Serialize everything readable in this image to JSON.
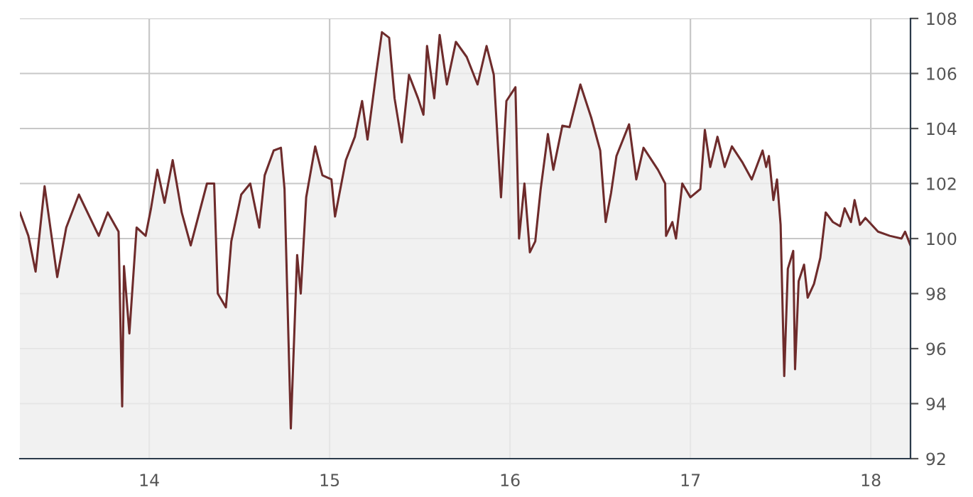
{
  "chart_data": {
    "type": "area",
    "xlim": [
      13.283,
      18.22
    ],
    "ylim": [
      92,
      108
    ],
    "xticks": [
      14,
      15,
      16,
      17,
      18
    ],
    "yticks": [
      92,
      94,
      96,
      98,
      100,
      102,
      104,
      106,
      108
    ],
    "grid": true,
    "legend": false,
    "marker": "none",
    "line_style": "solid",
    "series": [
      {
        "color": "#6e2b2b",
        "x": [
          13.283,
          13.33,
          13.37,
          13.42,
          13.49,
          13.54,
          13.61,
          13.72,
          13.77,
          13.83,
          13.85,
          13.86,
          13.89,
          13.93,
          13.98,
          14.01,
          14.045,
          14.085,
          14.13,
          14.18,
          14.23,
          14.32,
          14.36,
          14.38,
          14.425,
          14.455,
          14.51,
          14.56,
          14.61,
          14.64,
          14.69,
          14.73,
          14.75,
          14.785,
          14.82,
          14.84,
          14.87,
          14.92,
          14.96,
          15.01,
          15.03,
          15.09,
          15.14,
          15.18,
          15.21,
          15.26,
          15.29,
          15.33,
          15.36,
          15.4,
          15.44,
          15.49,
          15.52,
          15.54,
          15.58,
          15.61,
          15.65,
          15.7,
          15.76,
          15.82,
          15.87,
          15.91,
          15.95,
          15.98,
          16.03,
          16.05,
          16.08,
          16.11,
          16.14,
          16.17,
          16.21,
          16.24,
          16.29,
          16.33,
          16.39,
          16.45,
          16.5,
          16.53,
          16.56,
          16.59,
          16.66,
          16.7,
          16.74,
          16.82,
          16.86,
          16.865,
          16.9,
          16.92,
          16.955,
          17.0,
          17.055,
          17.08,
          17.11,
          17.15,
          17.19,
          17.23,
          17.29,
          17.34,
          17.4,
          17.42,
          17.435,
          17.46,
          17.48,
          17.5,
          17.52,
          17.54,
          17.57,
          17.58,
          17.6,
          17.63,
          17.65,
          17.685,
          17.72,
          17.75,
          17.79,
          17.83,
          17.855,
          17.89,
          17.91,
          17.94,
          17.97,
          18.04,
          18.105,
          18.17,
          18.19,
          18.22
        ],
        "values": [
          100.95,
          100.1,
          98.8,
          101.9,
          98.6,
          100.4,
          101.6,
          100.1,
          100.95,
          100.25,
          93.9,
          99.0,
          96.55,
          100.4,
          100.1,
          101.1,
          102.5,
          101.3,
          102.85,
          100.95,
          99.75,
          102.0,
          102.0,
          98.0,
          97.5,
          99.9,
          101.6,
          102.0,
          100.4,
          102.3,
          103.2,
          103.3,
          101.8,
          93.1,
          99.4,
          98.0,
          101.5,
          103.35,
          102.3,
          102.15,
          100.8,
          102.85,
          103.7,
          105.0,
          103.6,
          106.1,
          107.5,
          107.3,
          105.1,
          103.5,
          105.95,
          105.1,
          104.5,
          107.0,
          105.1,
          107.4,
          105.6,
          107.15,
          106.6,
          105.6,
          107.0,
          105.95,
          101.5,
          105.0,
          105.5,
          100.0,
          102.0,
          99.5,
          99.9,
          101.8,
          103.8,
          102.5,
          104.1,
          104.05,
          105.6,
          104.4,
          103.2,
          100.6,
          101.65,
          103.0,
          104.15,
          102.15,
          103.3,
          102.5,
          102.0,
          100.1,
          100.6,
          100.0,
          102.0,
          101.5,
          101.8,
          103.95,
          102.6,
          103.7,
          102.6,
          103.35,
          102.75,
          102.15,
          103.2,
          102.6,
          103.0,
          101.4,
          102.15,
          100.5,
          95.0,
          98.9,
          99.55,
          95.25,
          98.45,
          99.05,
          97.85,
          98.35,
          99.3,
          100.95,
          100.6,
          100.45,
          101.1,
          100.6,
          101.4,
          100.5,
          100.75,
          100.25,
          100.1,
          100.0,
          100.25,
          99.75
        ]
      }
    ]
  }
}
